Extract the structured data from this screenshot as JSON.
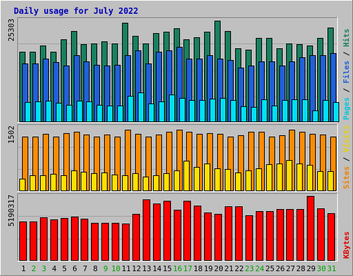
{
  "chart_data": {
    "type": "bar",
    "title": "Daily usage for July 2022",
    "days": [
      "1",
      "2",
      "3",
      "4",
      "5",
      "6",
      "7",
      "8",
      "9",
      "10",
      "11",
      "12",
      "13",
      "14",
      "15",
      "16",
      "17",
      "18",
      "19",
      "20",
      "21",
      "22",
      "23",
      "24",
      "25",
      "26",
      "27",
      "28",
      "29",
      "30",
      "31"
    ],
    "weekend_days": [
      "2",
      "3",
      "9",
      "10",
      "16",
      "17",
      "23",
      "24",
      "30",
      "31"
    ],
    "panels": [
      {
        "id": "hits_files_pages",
        "max_label": "25303",
        "ymax": 25303,
        "right_label": [
          {
            "text": "Pages",
            "color": "#00c8dc"
          },
          {
            "text": " / ",
            "color": "#000000"
          },
          {
            "text": "Files",
            "color": "#2060d8"
          },
          {
            "text": " / ",
            "color": "#000000"
          },
          {
            "text": "Hits",
            "color": "#1a8060"
          }
        ],
        "series": [
          {
            "name": "Hits",
            "color": "#1a8060",
            "values": [
              17400,
              17400,
              19000,
              17400,
              20500,
              22500,
              19200,
              19500,
              20000,
              19500,
              24600,
              21300,
              19500,
              22000,
              22400,
              23200,
              20500,
              21000,
              22400,
              25100,
              22600,
              18300,
              17900,
              20800,
              20800,
              18300,
              19500,
              19300,
              19000,
              20800,
              23400
            ]
          },
          {
            "name": "Files",
            "color": "#2060d8",
            "values": [
              14500,
              14500,
              15600,
              14800,
              14000,
              16500,
              15000,
              14100,
              14000,
              14100,
              16500,
              17700,
              14500,
              17300,
              17700,
              18600,
              15600,
              15600,
              16500,
              15600,
              15300,
              13500,
              14000,
              15000,
              15000,
              14000,
              15000,
              16000,
              16500,
              16500,
              17100
            ]
          },
          {
            "name": "Pages",
            "color": "#00e0f8",
            "values": [
              4800,
              5000,
              5100,
              4700,
              4100,
              5200,
              5000,
              4100,
              4000,
              4000,
              6400,
              7200,
              4500,
              5000,
              6700,
              5900,
              5400,
              5400,
              5700,
              5800,
              5400,
              3800,
              3600,
              5500,
              3900,
              5300,
              5500,
              5500,
              2800,
              5400,
              4800
            ]
          }
        ]
      },
      {
        "id": "visits_sites",
        "max_label": "1502",
        "ymax": 1502,
        "right_label": [
          {
            "text": "Sites",
            "color": "#f08000"
          },
          {
            "text": " / ",
            "color": "#000000"
          },
          {
            "text": "Visits",
            "color": "#e8d000"
          }
        ],
        "series": [
          {
            "name": "Sites",
            "color": "#ff8c00",
            "values": [
              1280,
              1280,
              1340,
              1280,
              1360,
              1380,
              1320,
              1280,
              1320,
              1280,
              1440,
              1340,
              1280,
              1320,
              1380,
              1440,
              1380,
              1340,
              1360,
              1340,
              1280,
              1300,
              1380,
              1380,
              1280,
              1300,
              1440,
              1380,
              1340,
              1320,
              1280
            ]
          },
          {
            "name": "Visits",
            "color": "#ffe000",
            "values": [
              270,
              360,
              360,
              390,
              360,
              480,
              440,
              400,
              420,
              380,
              360,
              400,
              330,
              360,
              400,
              480,
              700,
              560,
              640,
              520,
              500,
              420,
              480,
              520,
              620,
              640,
              720,
              640,
              600,
              460,
              460
            ]
          }
        ]
      },
      {
        "id": "kbytes",
        "max_label": "5190317",
        "ymax": 5190317,
        "right_label": [
          {
            "text": "KBytes",
            "color": "#e00000"
          }
        ],
        "series": [
          {
            "name": "KBytes",
            "color": "#ff0000",
            "values": [
              3120000,
              3120000,
              3460000,
              3280000,
              3410000,
              3520000,
              3370000,
              3020000,
              3020000,
              3020000,
              2940000,
              3720000,
              4900000,
              4600000,
              4780000,
              4050000,
              4780000,
              4420000,
              3850000,
              3720000,
              4360000,
              4360000,
              3650000,
              3970000,
              3970000,
              4150000,
              4150000,
              4150000,
              5190317,
              4200000,
              3780000
            ]
          }
        ]
      }
    ]
  }
}
